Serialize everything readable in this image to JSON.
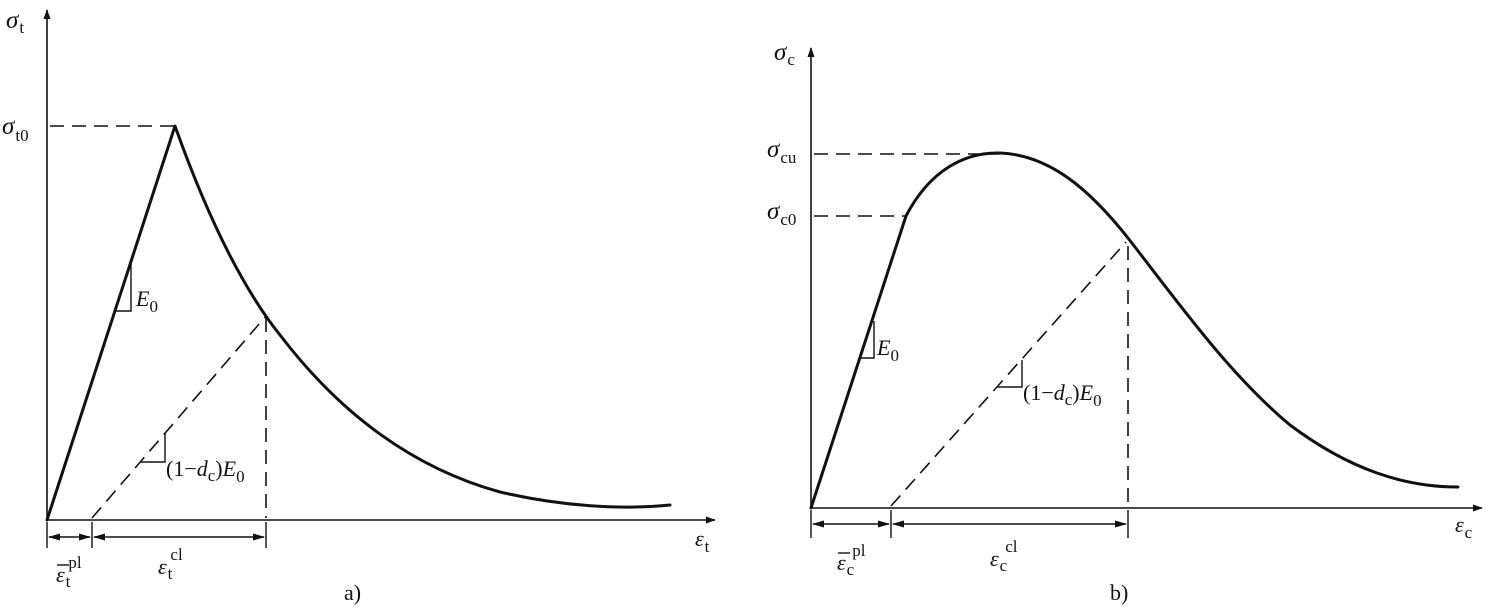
{
  "panel_a": {
    "caption": "a)",
    "y_axis": {
      "symbol": "σ",
      "subscript": "t"
    },
    "x_axis": {
      "symbol": "ε",
      "subscript": "t"
    },
    "peak_label": {
      "symbol": "σ",
      "subscript": "t0"
    },
    "slope_label": {
      "symbol": "E",
      "subscript": "0"
    },
    "unload_slope_label": {
      "prefix": "(1−",
      "d": "d",
      "d_sub": "c",
      "mid": ")",
      "E": "E",
      "E_sub": "0"
    },
    "plastic_strain_label": {
      "symbol": "ε",
      "subscript": "t",
      "superscript": "pl"
    },
    "cracking_strain_label": {
      "symbol": "ε",
      "subscript": "t",
      "superscript": "cl"
    }
  },
  "panel_b": {
    "caption": "b)",
    "y_axis": {
      "symbol": "σ",
      "subscript": "c"
    },
    "x_axis": {
      "symbol": "ε",
      "subscript": "c"
    },
    "ultimate_label": {
      "symbol": "σ",
      "subscript": "cu"
    },
    "initial_yield_label": {
      "symbol": "σ",
      "subscript": "c0"
    },
    "slope_label": {
      "symbol": "E",
      "subscript": "0"
    },
    "unload_slope_label": {
      "prefix": "(1−",
      "d": "d",
      "d_sub": "c",
      "mid": ")",
      "E": "E",
      "E_sub": "0"
    },
    "plastic_strain_label": {
      "symbol": "ε",
      "subscript": "c",
      "superscript": "pl"
    },
    "crushing_strain_label": {
      "symbol": "ε",
      "subscript": "c",
      "superscript": "cl"
    }
  }
}
